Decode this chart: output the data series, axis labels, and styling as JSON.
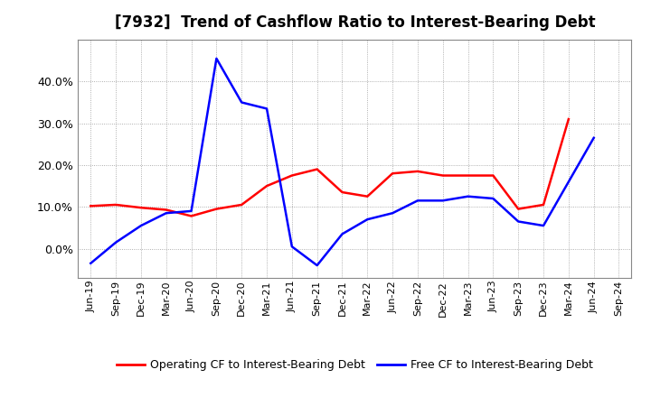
{
  "title": "[7932]  Trend of Cashflow Ratio to Interest-Bearing Debt",
  "x_labels": [
    "Jun-19",
    "Sep-19",
    "Dec-19",
    "Mar-20",
    "Jun-20",
    "Sep-20",
    "Dec-20",
    "Mar-21",
    "Jun-21",
    "Sep-21",
    "Dec-21",
    "Mar-22",
    "Jun-22",
    "Sep-22",
    "Dec-22",
    "Mar-23",
    "Jun-23",
    "Sep-23",
    "Dec-23",
    "Mar-24",
    "Jun-24",
    "Sep-24"
  ],
  "operating_cf": [
    10.2,
    10.5,
    9.8,
    9.3,
    7.8,
    9.5,
    10.5,
    15.0,
    17.5,
    19.0,
    13.5,
    12.5,
    18.0,
    18.5,
    17.5,
    17.5,
    17.5,
    9.5,
    10.5,
    31.0,
    null,
    null
  ],
  "free_cf": [
    -3.5,
    1.5,
    5.5,
    8.5,
    9.0,
    45.5,
    35.0,
    33.5,
    0.5,
    -4.0,
    3.5,
    7.0,
    8.5,
    11.5,
    11.5,
    12.5,
    12.0,
    6.5,
    5.5,
    16.0,
    26.5,
    null
  ],
  "operating_color": "#ff0000",
  "free_color": "#0000ff",
  "background_color": "#ffffff",
  "plot_bg_color": "#ffffff",
  "grid_color": "#aaaaaa",
  "ylim": [
    -7,
    50
  ],
  "yticks": [
    0.0,
    10.0,
    20.0,
    30.0,
    40.0
  ],
  "legend_labels": [
    "Operating CF to Interest-Bearing Debt",
    "Free CF to Interest-Bearing Debt"
  ],
  "title_fontsize": 12,
  "tick_fontsize": 8,
  "legend_fontsize": 9
}
